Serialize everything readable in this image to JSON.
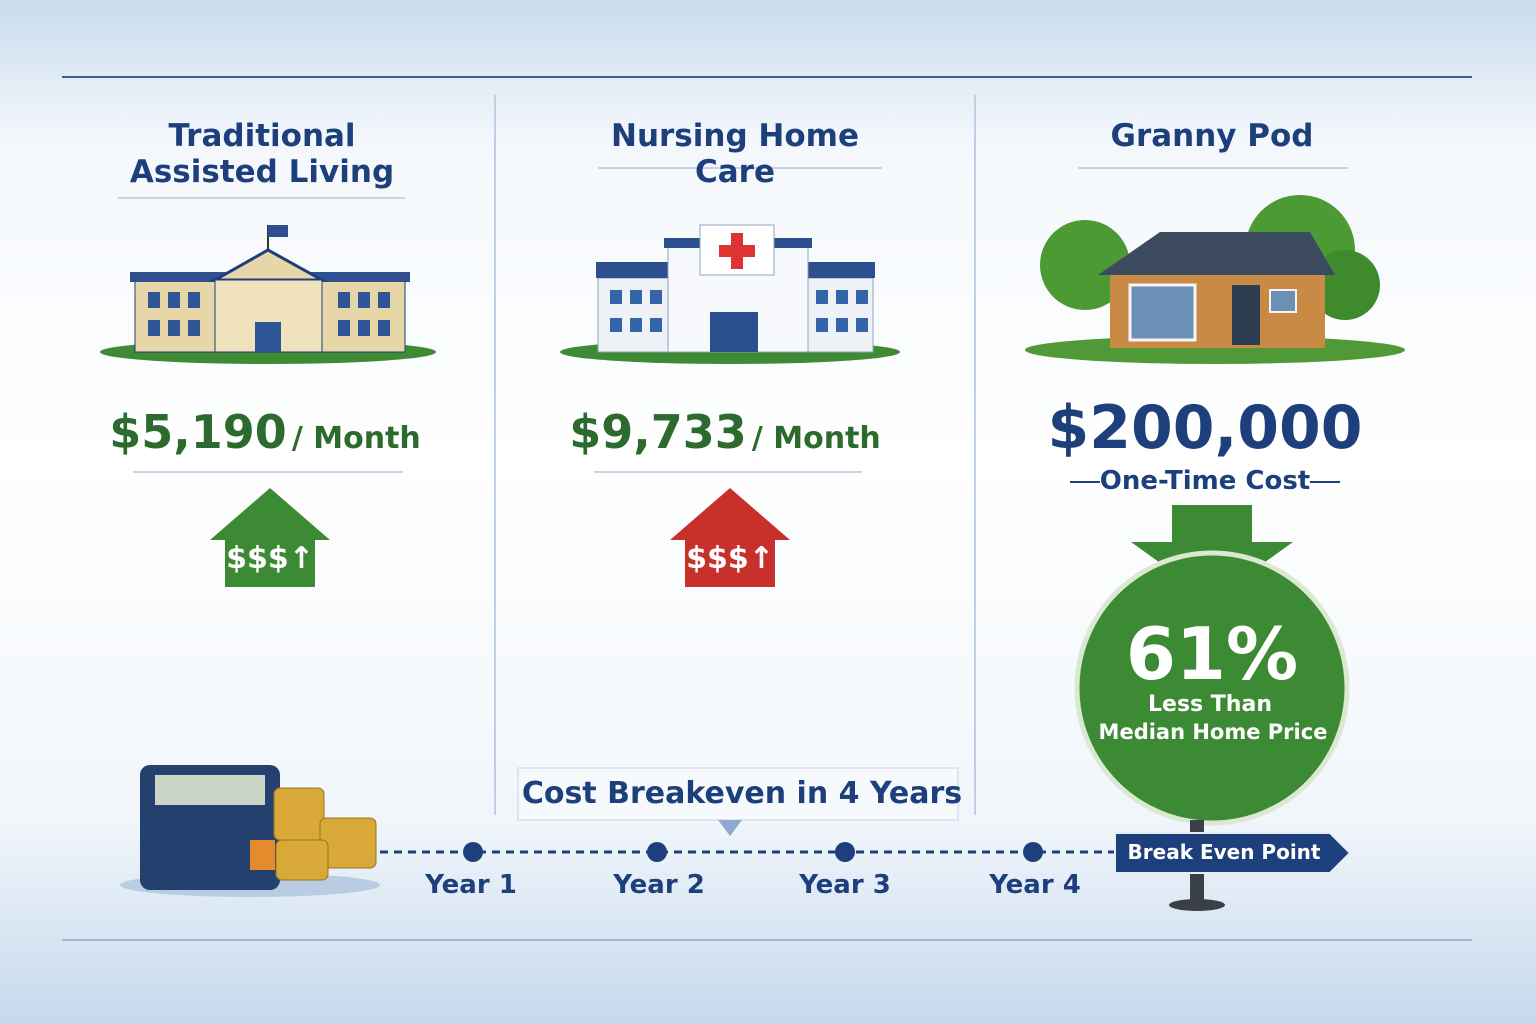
{
  "columns": [
    {
      "title": "Traditional Assisted Living",
      "price": "$5,190",
      "unit": "/ Month",
      "badge": "$$$↑"
    },
    {
      "title": "Nursing Home Care",
      "price": "$9,733",
      "unit": "/ Month",
      "badge": "$$$↑"
    }
  ],
  "granny_pod": {
    "title": "Granny Pod",
    "price": "$200,000",
    "note": "One-Time Cost",
    "percent": "61%",
    "line1": "Less Than",
    "line2": "Median Home Price"
  },
  "timeline": {
    "caption": "Cost Breakeven in 4 Years",
    "years": [
      "Year 1",
      "Year 2",
      "Year 3",
      "Year 4"
    ],
    "sign": "Break Even Point"
  }
}
